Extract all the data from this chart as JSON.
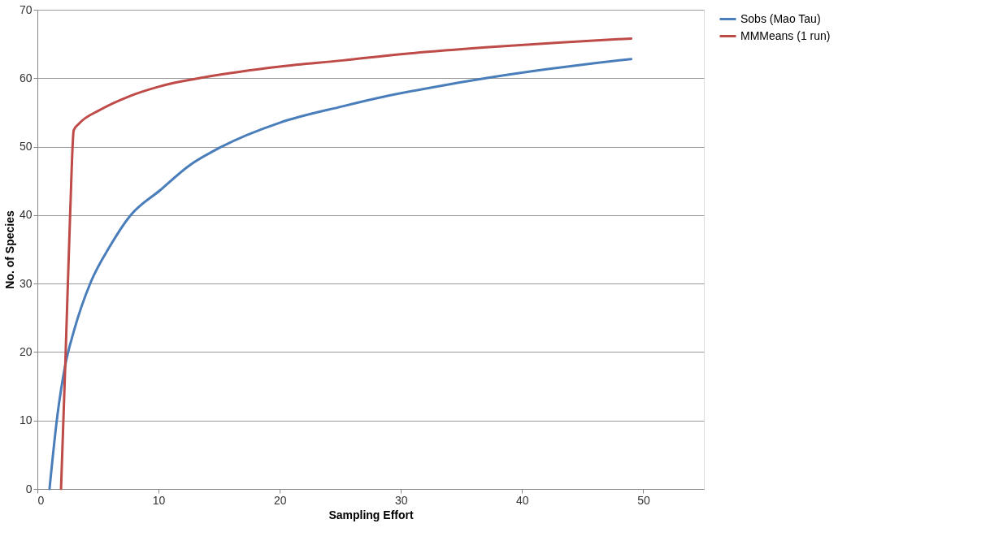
{
  "chart_data": {
    "type": "line",
    "xlabel": "Sampling Effort",
    "ylabel": "No. of Species",
    "xlim": [
      0,
      55
    ],
    "xticks": [
      0,
      10,
      20,
      30,
      40,
      50
    ],
    "ylim": [
      0,
      70
    ],
    "yticks": [
      0,
      10,
      20,
      30,
      40,
      50,
      60,
      70
    ],
    "grid": "y",
    "legend": "right",
    "marker": "none",
    "line_style": "solid",
    "series": [
      {
        "name": "Sobs (Mao Tau)",
        "color": "#4a7ebb",
        "x": [
          1,
          1.65,
          2.3,
          3,
          4.4,
          6,
          7.65,
          10.1,
          12.5,
          15.1,
          20,
          25.2,
          28.6,
          33,
          37,
          42,
          46,
          49
        ],
        "values": [
          0,
          10.7,
          18.1,
          23,
          30.2,
          35.5,
          39.9,
          43.6,
          47.2,
          49.9,
          53.5,
          55.9,
          57.3,
          58.8,
          60,
          61.3,
          62.2,
          62.8
        ]
      },
      {
        "name": "MMMeans (1 run)",
        "color": "#be4b48",
        "x": [
          1.95,
          2.3,
          2.7,
          3,
          3.4,
          5.2,
          7.5,
          10.1,
          14,
          20,
          25.2,
          30,
          37,
          43,
          49
        ],
        "values": [
          0,
          18,
          40,
          52.4,
          53.3,
          55.4,
          57.3,
          58.8,
          60.2,
          61.7,
          62.6,
          63.5,
          64.5,
          65.2,
          65.8
        ]
      }
    ]
  }
}
